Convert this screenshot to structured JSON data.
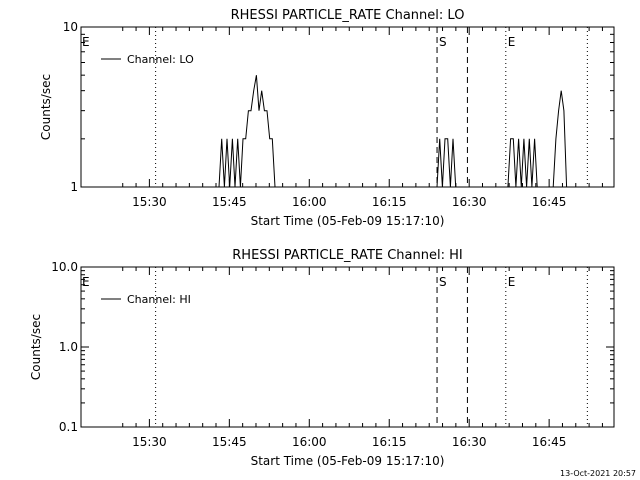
{
  "footer": {
    "timestamp": "13-Oct-2021 20:57"
  },
  "chart_data": [
    {
      "type": "line",
      "title": "RHESSI PARTICLE_RATE Channel: LO",
      "xlabel": "Start Time (05-Feb-09 15:17:10)",
      "ylabel": "Counts/sec",
      "y_scale": "log",
      "ylim": [
        1,
        10
      ],
      "y_ticks": [
        {
          "v": 1,
          "label": "1"
        },
        {
          "v": 10,
          "label": "10"
        }
      ],
      "x_unit": "minutes since 15:17:10",
      "xlim": [
        0,
        100
      ],
      "x_ticks": [
        {
          "v": 12.83,
          "label": "15:30"
        },
        {
          "v": 27.83,
          "label": "15:45"
        },
        {
          "v": 42.83,
          "label": "16:00"
        },
        {
          "v": 57.83,
          "label": "16:15"
        },
        {
          "v": 72.83,
          "label": "16:30"
        },
        {
          "v": 87.83,
          "label": "16:45"
        }
      ],
      "legend": {
        "label": "Channel: LO",
        "position": "top-left"
      },
      "vlines": [
        {
          "x": 14.0,
          "style": "dotted",
          "label": ""
        },
        {
          "x": 66.8,
          "style": "dashed",
          "label": "S"
        },
        {
          "x": 72.5,
          "style": "dashed",
          "label": ""
        },
        {
          "x": 79.7,
          "style": "dotted",
          "label": "E"
        },
        {
          "x": 95.0,
          "style": "dotted",
          "label": ""
        }
      ],
      "left_marker": "E",
      "series": [
        {
          "name": "Channel: LO",
          "x": [
            25.9,
            26.4,
            26.9,
            27.4,
            27.9,
            28.4,
            28.9,
            29.4,
            29.9,
            30.4,
            30.9,
            31.4,
            31.9,
            32.4,
            32.9,
            33.4,
            33.9,
            34.4,
            34.9,
            35.4,
            35.9,
            36.4,
            36.9,
            37.4,
            37.9,
            38.4,
            38.9,
            39.4,
            39.9,
            40.4,
            40.9,
            66.8,
            67.3,
            67.8,
            68.3,
            68.8,
            69.3,
            69.8,
            70.3,
            70.8,
            71.3,
            71.8,
            72.3,
            72.8,
            80.1,
            80.6,
            81.1,
            81.6,
            82.1,
            82.6,
            83.1,
            83.6,
            84.1,
            84.6,
            85.1,
            85.6,
            86.1,
            86.6,
            87.1,
            87.6,
            88.1,
            88.6,
            89.1,
            89.6,
            90.1,
            90.6,
            91.1,
            91.6,
            92.1,
            92.6,
            93.1,
            93.6,
            94.1,
            94.6
          ],
          "y": [
            1,
            2,
            1,
            2,
            1,
            2,
            1,
            2,
            1,
            2,
            2,
            3,
            3,
            4,
            5,
            3,
            4,
            3,
            3,
            2,
            2,
            1,
            1,
            1,
            1,
            1,
            1,
            1,
            1,
            1,
            1,
            1,
            2,
            1,
            2,
            2,
            1,
            2,
            1,
            1,
            1,
            1,
            1,
            1,
            1,
            2,
            2,
            1,
            2,
            1,
            2,
            1,
            2,
            1,
            2,
            1,
            1,
            1,
            1,
            1,
            1,
            1,
            2,
            3,
            4,
            3,
            1,
            1,
            1,
            1,
            1,
            1,
            1,
            1
          ]
        }
      ]
    },
    {
      "type": "line",
      "title": "RHESSI PARTICLE_RATE Channel: HI",
      "xlabel": "Start Time (05-Feb-09 15:17:10)",
      "ylabel": "Counts/sec",
      "y_scale": "log",
      "ylim": [
        0.1,
        10
      ],
      "y_ticks": [
        {
          "v": 0.1,
          "label": "0.1"
        },
        {
          "v": 1,
          "label": "1.0"
        },
        {
          "v": 10,
          "label": "10.0"
        }
      ],
      "x_unit": "minutes since 15:17:10",
      "xlim": [
        0,
        100
      ],
      "x_ticks": [
        {
          "v": 12.83,
          "label": "15:30"
        },
        {
          "v": 27.83,
          "label": "15:45"
        },
        {
          "v": 42.83,
          "label": "16:00"
        },
        {
          "v": 57.83,
          "label": "16:15"
        },
        {
          "v": 72.83,
          "label": "16:30"
        },
        {
          "v": 87.83,
          "label": "16:45"
        }
      ],
      "legend": {
        "label": "Channel: HI",
        "position": "top-left"
      },
      "vlines": [
        {
          "x": 14.0,
          "style": "dotted",
          "label": ""
        },
        {
          "x": 66.8,
          "style": "dashed",
          "label": "S"
        },
        {
          "x": 72.5,
          "style": "dashed",
          "label": ""
        },
        {
          "x": 79.7,
          "style": "dotted",
          "label": "E"
        },
        {
          "x": 95.0,
          "style": "dotted",
          "label": ""
        }
      ],
      "left_marker": "E",
      "series": [
        {
          "name": "Channel: HI",
          "x": [],
          "y": []
        }
      ]
    }
  ]
}
